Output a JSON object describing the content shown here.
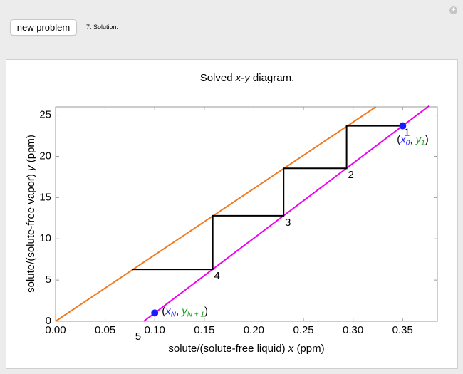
{
  "ui": {
    "button": "new problem",
    "status": "7. Solution."
  },
  "chart_data": {
    "type": "line",
    "title": [
      "Solved ",
      "x",
      "-",
      "y",
      " diagram."
    ],
    "x_label": [
      "solute/(solute-free liquid) ",
      "x",
      " (ppm)"
    ],
    "y_label": [
      "solute/(solute-free vapor) ",
      "y",
      " (ppm)"
    ],
    "xlim": [
      0,
      0.385
    ],
    "ylim": [
      0,
      26
    ],
    "xticks": [
      {
        "value": 0,
        "label": "0.00"
      },
      0.05,
      {
        "value": 0.1,
        "label": "0.10"
      },
      0.15,
      {
        "value": 0.2,
        "label": "0.20"
      },
      0.25,
      {
        "value": 0.3,
        "label": "0.30"
      },
      0.35
    ],
    "yticks": [
      0,
      5,
      10,
      15,
      20,
      25
    ],
    "series": [
      {
        "color": "#f07a22",
        "x": [
          0,
          0.323
        ],
        "values": [
          0,
          26
        ]
      },
      {
        "color": "#ee00ee",
        "x": [
          0.089,
          0.3765
        ],
        "values": [
          0,
          26.1
        ]
      },
      {
        "color": "#000000",
        "x": [
          0.35,
          0.2935,
          0.2935,
          0.23,
          0.23,
          0.1585,
          0.1585,
          0.0775
        ],
        "values": [
          23.7,
          23.7,
          18.55,
          18.55,
          12.8,
          12.8,
          6.3,
          6.3
        ]
      }
    ],
    "points": {
      "color": "#1a1aff",
      "x": [
        0.35,
        0.1
      ],
      "values": [
        23.7,
        1
      ]
    },
    "point_labels": [
      [
        "(",
        "x",
        "0",
        ", ",
        "y",
        "1",
        ")"
      ],
      [
        "(",
        "x",
        "N",
        ", ",
        "y",
        "N + 1",
        ")"
      ]
    ],
    "stage_labels": [
      "1",
      "2",
      "3",
      "4",
      "5"
    ]
  }
}
